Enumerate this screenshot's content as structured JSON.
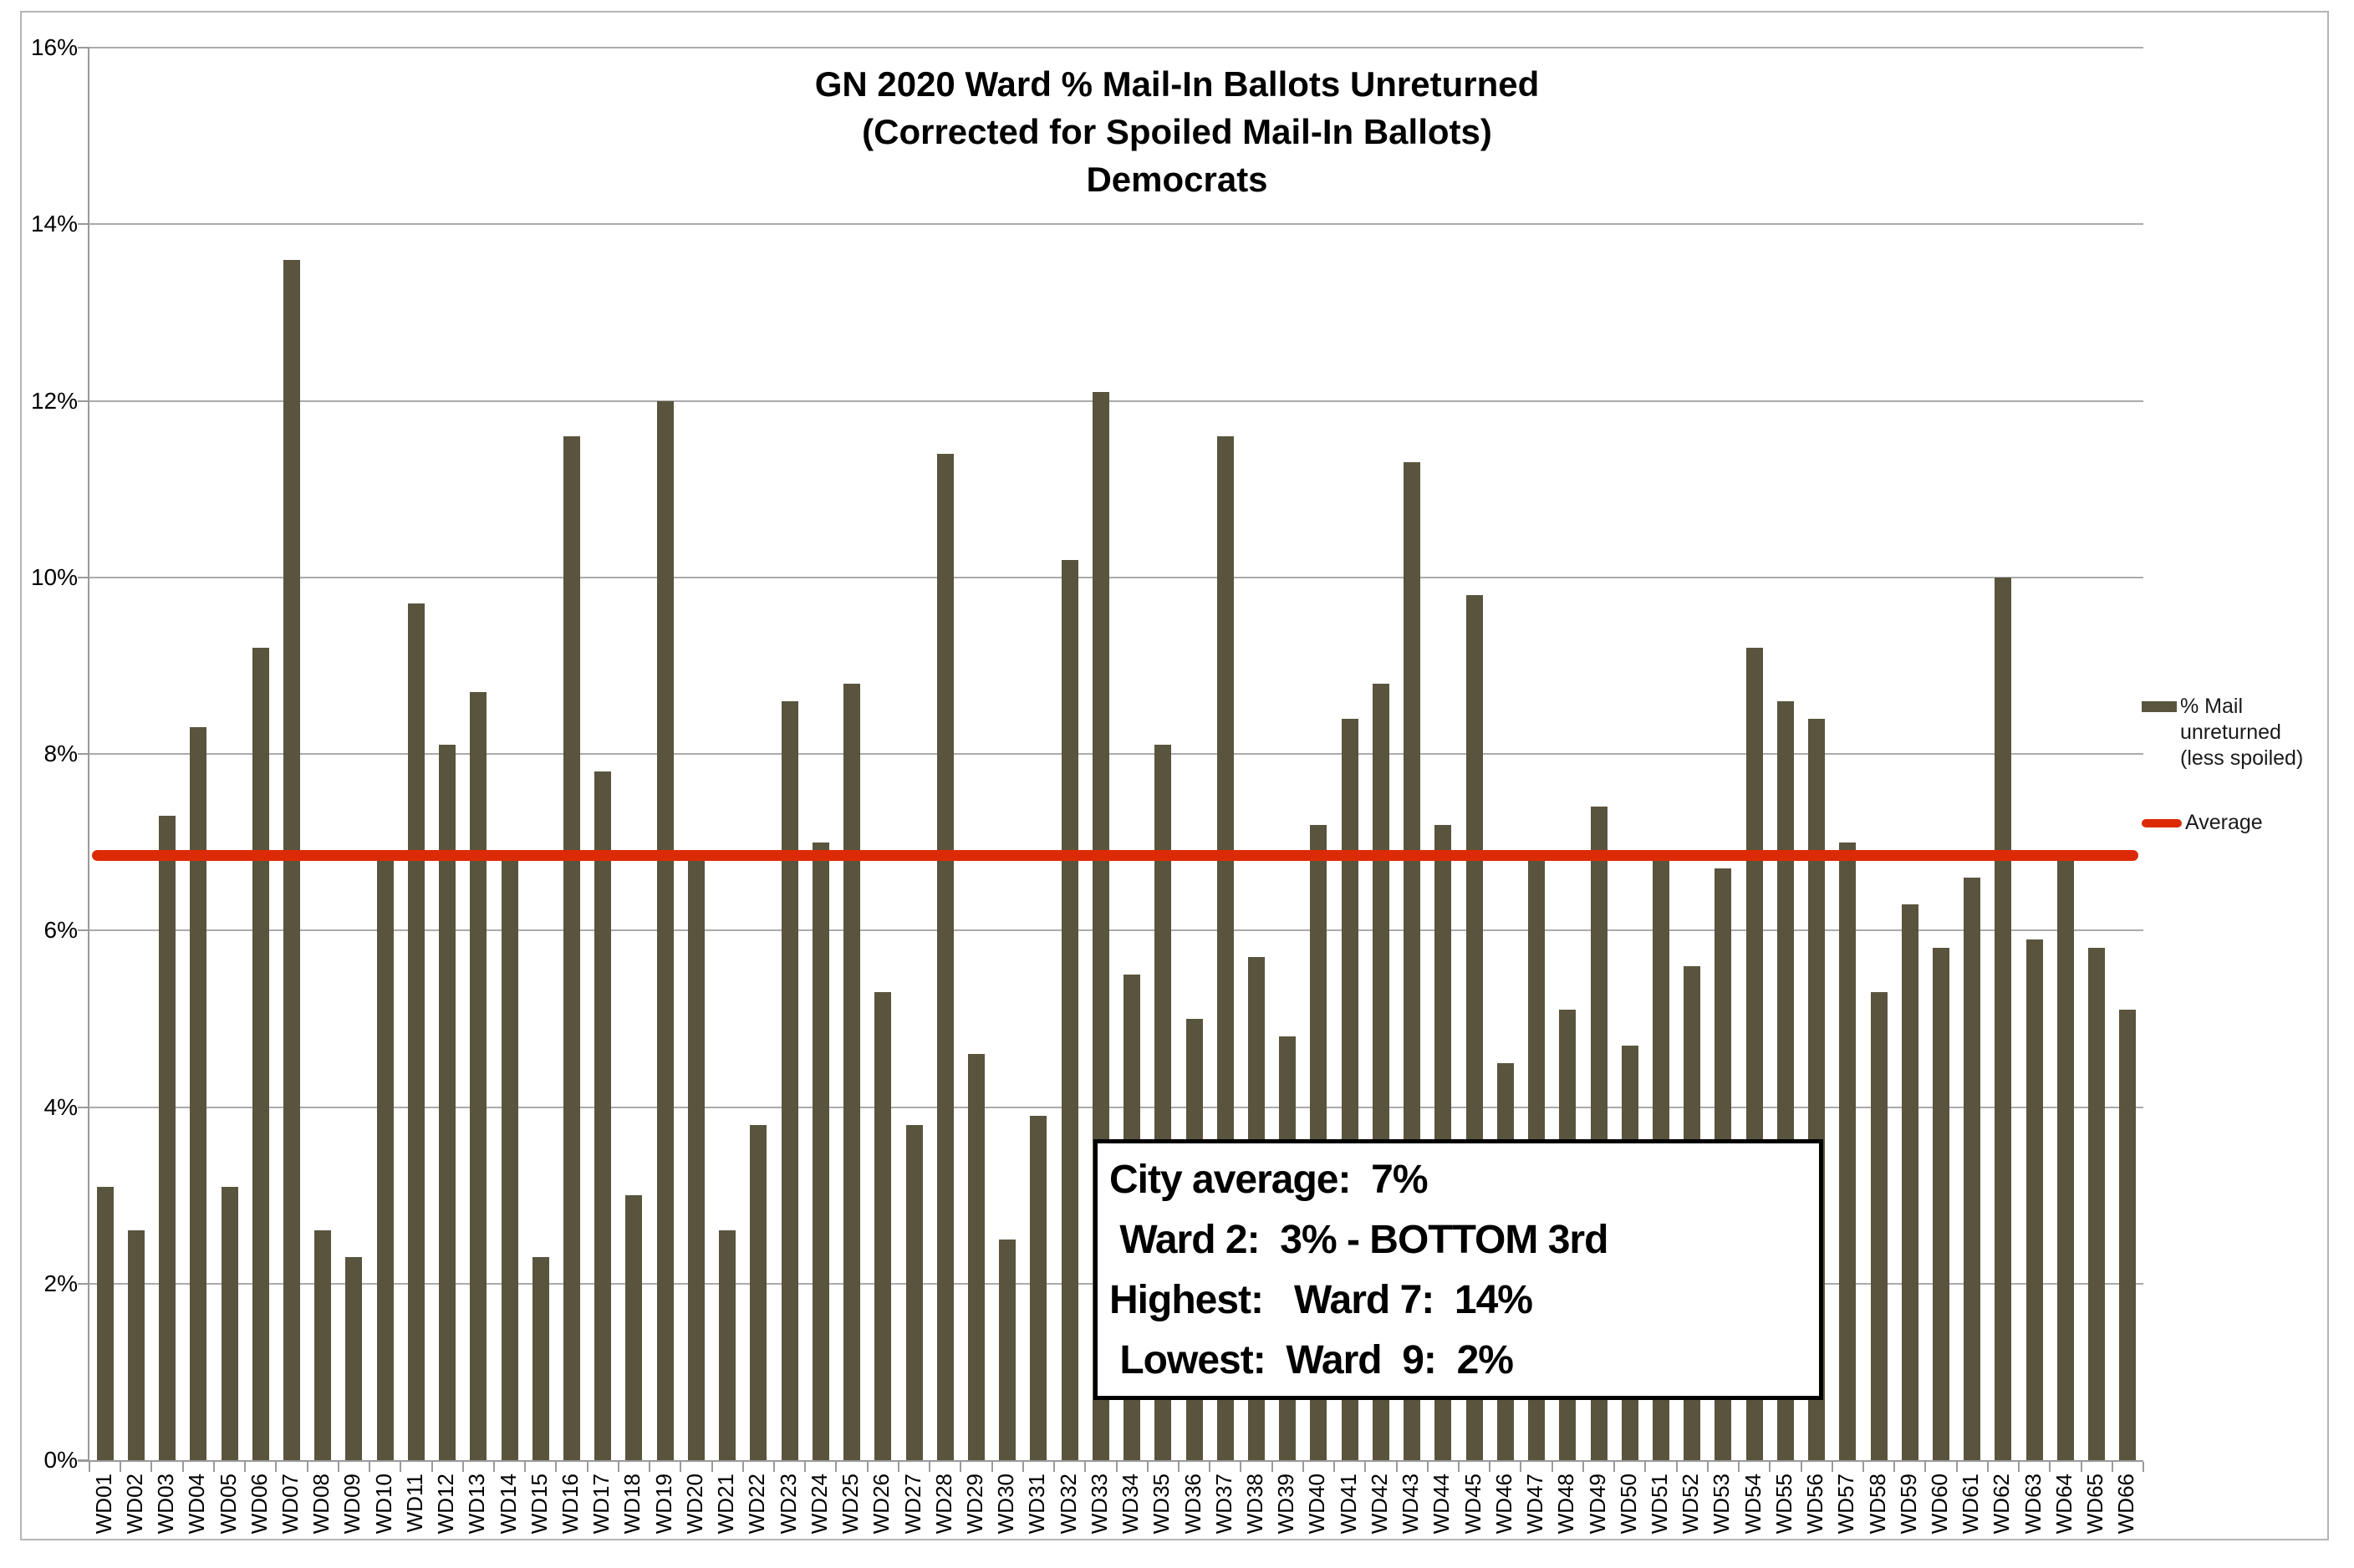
{
  "chart_data": {
    "type": "bar",
    "title_lines": [
      "GN 2020 Ward % Mail-In Ballots Unreturned",
      "(Corrected for Spoiled Mail-In Ballots)",
      "Democrats"
    ],
    "categories": [
      "WD01",
      "WD02",
      "WD03",
      "WD04",
      "WD05",
      "WD06",
      "WD07",
      "WD08",
      "WD09",
      "WD10",
      "WD11",
      "WD12",
      "WD13",
      "WD14",
      "WD15",
      "WD16",
      "WD17",
      "WD18",
      "WD19",
      "WD20",
      "WD21",
      "WD22",
      "WD23",
      "WD24",
      "WD25",
      "WD26",
      "WD27",
      "WD28",
      "WD29",
      "WD30",
      "WD31",
      "WD32",
      "WD33",
      "WD34",
      "WD35",
      "WD36",
      "WD37",
      "WD38",
      "WD39",
      "WD40",
      "WD41",
      "WD42",
      "WD43",
      "WD44",
      "WD45",
      "WD46",
      "WD47",
      "WD48",
      "WD49",
      "WD50",
      "WD51",
      "WD52",
      "WD53",
      "WD54",
      "WD55",
      "WD56",
      "WD57",
      "WD58",
      "WD59",
      "WD60",
      "WD61",
      "WD62",
      "WD63",
      "WD64",
      "WD65",
      "WD66"
    ],
    "values": [
      3.1,
      2.6,
      7.3,
      8.3,
      3.1,
      9.2,
      13.6,
      2.6,
      2.3,
      6.8,
      9.7,
      8.1,
      8.7,
      6.8,
      2.3,
      11.6,
      7.8,
      3.0,
      12.0,
      6.8,
      2.6,
      3.8,
      8.6,
      7.0,
      8.8,
      5.3,
      3.8,
      11.4,
      4.6,
      2.5,
      3.9,
      10.2,
      12.1,
      5.5,
      8.1,
      5.0,
      11.6,
      5.7,
      4.8,
      7.2,
      8.4,
      8.8,
      11.3,
      7.2,
      9.8,
      4.5,
      6.8,
      5.1,
      7.4,
      4.7,
      6.8,
      5.6,
      6.7,
      9.2,
      8.6,
      8.4,
      7.0,
      5.3,
      6.3,
      5.8,
      6.6,
      10.0,
      5.9,
      6.8,
      5.8,
      5.1
    ],
    "series_name": "% Mail unreturned (less spoiled)",
    "average_line": {
      "label": "Average",
      "value": 6.85
    },
    "ylim": [
      0,
      16
    ],
    "ytick_step": 2,
    "ytick_suffix": "%",
    "grid": true,
    "legend_position": "right",
    "colors": {
      "bar": "#59543d",
      "average_line": "#dc2b04",
      "gridline": "#ababab",
      "axis": "#9a9a9a",
      "text": "#000000"
    }
  },
  "legend": {
    "series_label": "% Mail\nunreturned\n(less spoiled)",
    "average_label": "Average"
  },
  "annotation_box": {
    "lines": [
      "City average:  7%",
      " Ward 2:  3% - BOTTOM 3rd",
      "Highest:   Ward 7:  14%",
      " Lowest:  Ward  9:  2%"
    ]
  }
}
